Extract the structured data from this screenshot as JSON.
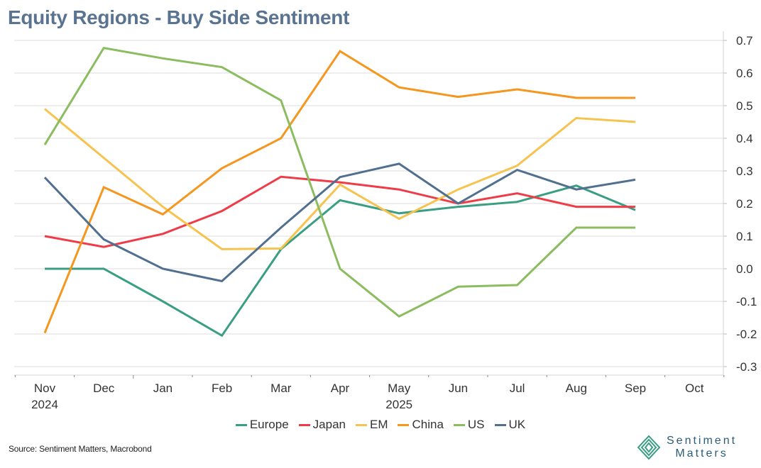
{
  "chart_data": {
    "type": "line",
    "title": "Equity Regions - Buy Side Sentiment",
    "xlabel": "",
    "ylabel": "",
    "x": [
      "Nov",
      "Dec",
      "Jan",
      "Feb",
      "Mar",
      "Apr",
      "May",
      "Jun",
      "Jul",
      "Aug",
      "Sep",
      "Oct"
    ],
    "x_year_labels": [
      {
        "index": 0,
        "label": "2024"
      },
      {
        "index": 6,
        "label": "2025"
      }
    ],
    "yticks": [
      "0.7",
      "0.6",
      "0.5",
      "0.4",
      "0.3",
      "0.2",
      "0.1",
      "0.0",
      "-0.1",
      "-0.2",
      "-0.3"
    ],
    "ylim": [
      -0.3,
      0.7
    ],
    "yaxis_side": "right",
    "grid": true,
    "legend_position": "bottom-center",
    "series": [
      {
        "name": "Europe",
        "color": "#3a9e83",
        "values": [
          0.0,
          0.0,
          -0.1,
          -0.205,
          0.06,
          0.21,
          0.17,
          0.19,
          0.205,
          0.255,
          0.18
        ]
      },
      {
        "name": "Japan",
        "color": "#ee3d48",
        "values": [
          0.1,
          0.067,
          0.107,
          0.177,
          0.282,
          0.265,
          0.243,
          0.2,
          0.231,
          0.19,
          0.19
        ]
      },
      {
        "name": "EM",
        "color": "#f7c34f",
        "values": [
          0.49,
          0.34,
          0.19,
          0.06,
          0.062,
          0.258,
          0.153,
          0.243,
          0.316,
          0.462,
          0.45
        ]
      },
      {
        "name": "China",
        "color": "#f5961f",
        "values": [
          -0.197,
          0.25,
          0.167,
          0.308,
          0.4,
          0.667,
          0.556,
          0.527,
          0.55,
          0.524,
          0.524
        ]
      },
      {
        "name": "US",
        "color": "#8bbd60",
        "values": [
          0.38,
          0.677,
          0.645,
          0.618,
          0.516,
          0.0,
          -0.146,
          -0.055,
          -0.05,
          0.126,
          0.126
        ]
      },
      {
        "name": "UK",
        "color": "#51708f",
        "values": [
          0.28,
          0.09,
          0.0,
          -0.038,
          0.126,
          0.281,
          0.322,
          0.2,
          0.303,
          0.243,
          0.273
        ]
      }
    ]
  },
  "footer": {
    "source": "Source: Sentiment Matters, Macrobond",
    "logo_line1": "Sentiment",
    "logo_line2": "Matters"
  }
}
